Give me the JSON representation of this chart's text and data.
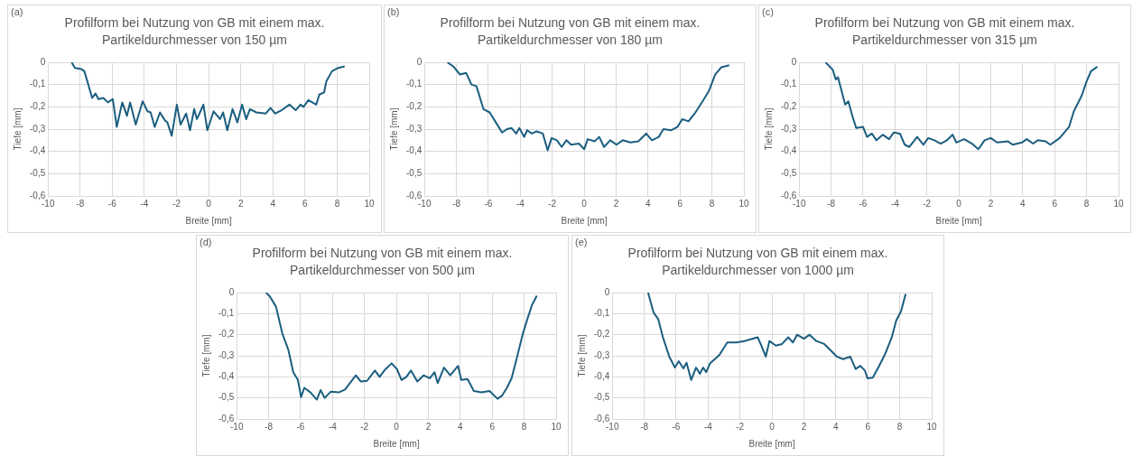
{
  "chart_data": [
    {
      "type": "line",
      "title": "Profilform bei Nutzung von GB mit einem max. Partikeldurchmesser von 150 µm",
      "annotations": [
        "(a)"
      ],
      "xlabel": "Breite [mm]",
      "ylabel": "Tiefe [mm]",
      "xlim": [
        -10,
        10
      ],
      "ylim": [
        -0.6,
        0
      ],
      "xticks": [
        -10,
        -8,
        -6,
        -4,
        -2,
        0,
        2,
        4,
        6,
        8,
        10
      ],
      "yticks": [
        {
          "value": 0,
          "label": "0"
        },
        {
          "value": -0.1,
          "label": "-0,1"
        },
        {
          "value": -0.2,
          "label": "-0,2"
        },
        {
          "value": -0.3,
          "label": "-0,3"
        },
        {
          "value": -0.4,
          "label": "-0,4"
        },
        {
          "value": -0.5,
          "label": "-0,5"
        },
        {
          "value": -0.6,
          "label": "-0,6"
        }
      ],
      "grid": true,
      "marker": "none",
      "x": [
        -8.53,
        -8.33,
        -7.94,
        -7.74,
        -7.25,
        -7.05,
        -6.86,
        -6.56,
        -6.27,
        -5.97,
        -5.72,
        -5.38,
        -5.09,
        -4.89,
        -4.54,
        -4.11,
        -3.81,
        -3.61,
        -3.36,
        -3.03,
        -2.73,
        -2.57,
        -2.3,
        -1.98,
        -1.75,
        -1.4,
        -1.16,
        -0.9,
        -0.73,
        -0.57,
        -0.33,
        -0.08,
        0.31,
        0.71,
        0.9,
        1.16,
        1.49,
        1.79,
        2.08,
        2.34,
        2.57,
        2.97,
        3.56,
        3.85,
        4.15,
        4.54,
        5.03,
        5.42,
        5.72,
        5.91,
        6.21,
        6.7,
        6.89,
        7.19,
        7.33,
        7.68,
        8.07,
        8.47
      ],
      "series": [
        {
          "color": "#1b5e80",
          "values": [
            0,
            -0.025,
            -0.03,
            -0.04,
            -0.16,
            -0.14,
            -0.165,
            -0.16,
            -0.18,
            -0.165,
            -0.29,
            -0.18,
            -0.24,
            -0.18,
            -0.28,
            -0.175,
            -0.22,
            -0.225,
            -0.29,
            -0.225,
            -0.26,
            -0.27,
            -0.33,
            -0.19,
            -0.28,
            -0.23,
            -0.305,
            -0.21,
            -0.255,
            -0.23,
            -0.19,
            -0.305,
            -0.22,
            -0.255,
            -0.225,
            -0.305,
            -0.21,
            -0.27,
            -0.19,
            -0.255,
            -0.21,
            -0.225,
            -0.23,
            -0.205,
            -0.23,
            -0.215,
            -0.19,
            -0.215,
            -0.19,
            -0.2,
            -0.17,
            -0.19,
            -0.145,
            -0.135,
            -0.085,
            -0.04,
            -0.025,
            -0.018
          ]
        }
      ]
    },
    {
      "type": "line",
      "title": "Profilform bei Nutzung von GB mit einem max. Partikeldurchmesser von 180 µm",
      "annotations": [
        "(b)"
      ],
      "xlabel": "Breite [mm]",
      "ylabel": "Tiefe [mm]",
      "xlim": [
        -10,
        10
      ],
      "ylim": [
        -0.6,
        0
      ],
      "xticks": [
        -10,
        -8,
        -6,
        -4,
        -2,
        0,
        2,
        4,
        6,
        8,
        10
      ],
      "yticks": [
        {
          "value": 0,
          "label": "0"
        },
        {
          "value": -0.1,
          "label": "-0,1"
        },
        {
          "value": -0.2,
          "label": "-0,2"
        },
        {
          "value": -0.3,
          "label": "-0,3"
        },
        {
          "value": -0.4,
          "label": "-0,4"
        },
        {
          "value": -0.5,
          "label": "-0,5"
        },
        {
          "value": -0.6,
          "label": "-0,6"
        }
      ],
      "grid": true,
      "marker": "none",
      "x": [
        -8.57,
        -8.18,
        -7.78,
        -7.39,
        -7.06,
        -6.75,
        -6.31,
        -5.92,
        -5.53,
        -5.14,
        -4.84,
        -4.55,
        -4.26,
        -4.06,
        -3.76,
        -3.57,
        -3.27,
        -2.98,
        -2.59,
        -2.29,
        -2.04,
        -1.71,
        -1.41,
        -1.12,
        -0.82,
        -0.33,
        0,
        0.22,
        0.65,
        0.94,
        1.24,
        1.63,
        2.02,
        2.41,
        2.9,
        3.39,
        3.88,
        4.24,
        4.67,
        4.96,
        5.45,
        5.84,
        6.14,
        6.53,
        6.92,
        7.41,
        7.8,
        8.2,
        8.59,
        9.08
      ],
      "series": [
        {
          "color": "#1b5e80",
          "values": [
            0,
            -0.02,
            -0.055,
            -0.048,
            -0.1,
            -0.107,
            -0.21,
            -0.225,
            -0.27,
            -0.315,
            -0.3,
            -0.295,
            -0.32,
            -0.295,
            -0.335,
            -0.305,
            -0.32,
            -0.31,
            -0.32,
            -0.395,
            -0.34,
            -0.35,
            -0.38,
            -0.35,
            -0.37,
            -0.365,
            -0.39,
            -0.345,
            -0.355,
            -0.335,
            -0.38,
            -0.35,
            -0.37,
            -0.35,
            -0.36,
            -0.355,
            -0.32,
            -0.35,
            -0.335,
            -0.3,
            -0.305,
            -0.29,
            -0.255,
            -0.265,
            -0.23,
            -0.175,
            -0.13,
            -0.055,
            -0.022,
            -0.013
          ]
        }
      ]
    },
    {
      "type": "line",
      "title": "Profilform bei Nutzung von GB mit einem max. Partikeldurchmesser von 315 µm",
      "annotations": [
        "(c)"
      ],
      "xlabel": "Breite [mm]",
      "ylabel": "Tiefe [mm]",
      "xlim": [
        -10,
        10
      ],
      "ylim": [
        -0.6,
        0
      ],
      "xticks": [
        -10,
        -8,
        -6,
        -4,
        -2,
        0,
        2,
        4,
        6,
        8,
        10
      ],
      "yticks": [
        {
          "value": 0,
          "label": "0"
        },
        {
          "value": -0.1,
          "label": "-0,1"
        },
        {
          "value": -0.2,
          "label": "-0,2"
        },
        {
          "value": -0.3,
          "label": "-0,3"
        },
        {
          "value": -0.4,
          "label": "-0,4"
        },
        {
          "value": -0.5,
          "label": "-0,5"
        },
        {
          "value": -0.6,
          "label": "-0,6"
        }
      ],
      "grid": true,
      "marker": "none",
      "x": [
        -8.35,
        -7.9,
        -7.71,
        -7.57,
        -7.12,
        -6.92,
        -6.63,
        -6.43,
        -6,
        -5.75,
        -5.45,
        -5.16,
        -4.77,
        -4.37,
        -4.08,
        -3.69,
        -3.39,
        -3.1,
        -2.61,
        -2.22,
        -1.92,
        -1.53,
        -1.14,
        -0.75,
        -0.39,
        -0.16,
        0.33,
        0.82,
        1.22,
        1.61,
        2,
        2.39,
        3.08,
        3.37,
        3.96,
        4.25,
        4.65,
        4.94,
        5.43,
        5.73,
        6.31,
        6.61,
        6.9,
        7.2,
        7.69,
        7.98,
        8.27,
        8.67
      ],
      "series": [
        {
          "color": "#1b5e80",
          "values": [
            0,
            -0.033,
            -0.077,
            -0.067,
            -0.19,
            -0.175,
            -0.25,
            -0.295,
            -0.29,
            -0.335,
            -0.32,
            -0.35,
            -0.325,
            -0.345,
            -0.315,
            -0.32,
            -0.37,
            -0.38,
            -0.335,
            -0.37,
            -0.34,
            -0.35,
            -0.365,
            -0.35,
            -0.325,
            -0.36,
            -0.345,
            -0.365,
            -0.39,
            -0.35,
            -0.34,
            -0.36,
            -0.355,
            -0.37,
            -0.36,
            -0.345,
            -0.365,
            -0.35,
            -0.355,
            -0.37,
            -0.34,
            -0.315,
            -0.29,
            -0.22,
            -0.15,
            -0.09,
            -0.04,
            -0.02
          ]
        }
      ]
    },
    {
      "type": "line",
      "title": "Profilform bei Nutzung von GB mit einem max. Partikeldurchmesser von 500 µm",
      "annotations": [
        "(d)"
      ],
      "xlabel": "Breite [mm]",
      "ylabel": "Tiefe [mm]",
      "xlim": [
        -10,
        10
      ],
      "ylim": [
        -0.6,
        0
      ],
      "xticks": [
        -10,
        -8,
        -6,
        -4,
        -2,
        0,
        2,
        4,
        6,
        8,
        10
      ],
      "yticks": [
        {
          "value": 0,
          "label": "0"
        },
        {
          "value": -0.1,
          "label": "-0,1"
        },
        {
          "value": -0.2,
          "label": "-0,2"
        },
        {
          "value": -0.3,
          "label": "-0,3"
        },
        {
          "value": -0.4,
          "label": "-0,4"
        },
        {
          "value": -0.5,
          "label": "-0,5"
        },
        {
          "value": -0.6,
          "label": "-0,6"
        }
      ],
      "grid": true,
      "marker": "none",
      "x": [
        -8.17,
        -7.93,
        -7.54,
        -7.15,
        -6.76,
        -6.46,
        -6.17,
        -5.97,
        -5.77,
        -5.38,
        -4.99,
        -4.75,
        -4.49,
        -4.1,
        -3.61,
        -3.22,
        -2.83,
        -2.54,
        -2.24,
        -1.84,
        -1.35,
        -1.05,
        -0.76,
        -0.3,
        0.03,
        0.32,
        0.62,
        0.91,
        1.31,
        1.7,
        2.09,
        2.39,
        2.58,
        2.98,
        3.37,
        3.86,
        4.06,
        4.45,
        4.85,
        5.34,
        5.83,
        6.33,
        6.62,
        6.92,
        7.21,
        7.51,
        7.9,
        8.2,
        8.49,
        8.79
      ],
      "series": [
        {
          "color": "#1b5e80",
          "values": [
            0,
            -0.018,
            -0.067,
            -0.193,
            -0.274,
            -0.378,
            -0.415,
            -0.496,
            -0.452,
            -0.474,
            -0.508,
            -0.463,
            -0.5,
            -0.47,
            -0.474,
            -0.46,
            -0.422,
            -0.393,
            -0.422,
            -0.419,
            -0.37,
            -0.4,
            -0.37,
            -0.336,
            -0.363,
            -0.415,
            -0.4,
            -0.37,
            -0.422,
            -0.393,
            -0.407,
            -0.378,
            -0.43,
            -0.356,
            -0.393,
            -0.348,
            -0.415,
            -0.41,
            -0.467,
            -0.474,
            -0.467,
            -0.504,
            -0.489,
            -0.452,
            -0.407,
            -0.319,
            -0.2,
            -0.126,
            -0.059,
            -0.015
          ]
        }
      ]
    },
    {
      "type": "line",
      "title": "Profilform bei Nutzung von GB mit einem max. Partikeldurchmesser von 1000 µm",
      "annotations": [
        "(e)"
      ],
      "xlabel": "Breite [mm]",
      "ylabel": "Tiefe [mm]",
      "xlim": [
        -10,
        10
      ],
      "ylim": [
        -0.6,
        0
      ],
      "xticks": [
        -10,
        -8,
        -6,
        -4,
        -2,
        0,
        2,
        4,
        6,
        8,
        10
      ],
      "yticks": [
        {
          "value": 0,
          "label": "0"
        },
        {
          "value": -0.1,
          "label": "-0,1"
        },
        {
          "value": -0.2,
          "label": "-0,2"
        },
        {
          "value": -0.3,
          "label": "-0,3"
        },
        {
          "value": -0.4,
          "label": "-0,4"
        },
        {
          "value": -0.5,
          "label": "-0,5"
        },
        {
          "value": -0.6,
          "label": "-0,6"
        }
      ],
      "grid": true,
      "marker": "none",
      "x": [
        -7.76,
        -7.41,
        -7.12,
        -6.82,
        -6.43,
        -6.08,
        -5.84,
        -5.55,
        -5.35,
        -5.06,
        -4.76,
        -4.51,
        -4.31,
        -4.12,
        -3.88,
        -3.29,
        -2.8,
        -2.22,
        -1.73,
        -1.33,
        -0.9,
        -0.71,
        -0.39,
        -0.16,
        0.24,
        0.63,
        1.02,
        1.31,
        1.57,
        2,
        2.35,
        2.78,
        3.27,
        3.76,
        4.06,
        4.45,
        4.9,
        5.24,
        5.53,
        5.82,
        5.98,
        6.31,
        6.71,
        7.1,
        7.49,
        7.78,
        8.08,
        8.37
      ],
      "series": [
        {
          "color": "#1b5e80",
          "values": [
            0,
            -0.096,
            -0.126,
            -0.215,
            -0.304,
            -0.356,
            -0.326,
            -0.36,
            -0.333,
            -0.415,
            -0.356,
            -0.385,
            -0.356,
            -0.378,
            -0.336,
            -0.296,
            -0.237,
            -0.237,
            -0.23,
            -0.222,
            -0.212,
            -0.244,
            -0.304,
            -0.23,
            -0.252,
            -0.244,
            -0.212,
            -0.237,
            -0.2,
            -0.219,
            -0.2,
            -0.23,
            -0.244,
            -0.281,
            -0.304,
            -0.316,
            -0.304,
            -0.363,
            -0.348,
            -0.37,
            -0.407,
            -0.404,
            -0.348,
            -0.289,
            -0.215,
            -0.133,
            -0.089,
            -0.007
          ]
        }
      ]
    }
  ]
}
